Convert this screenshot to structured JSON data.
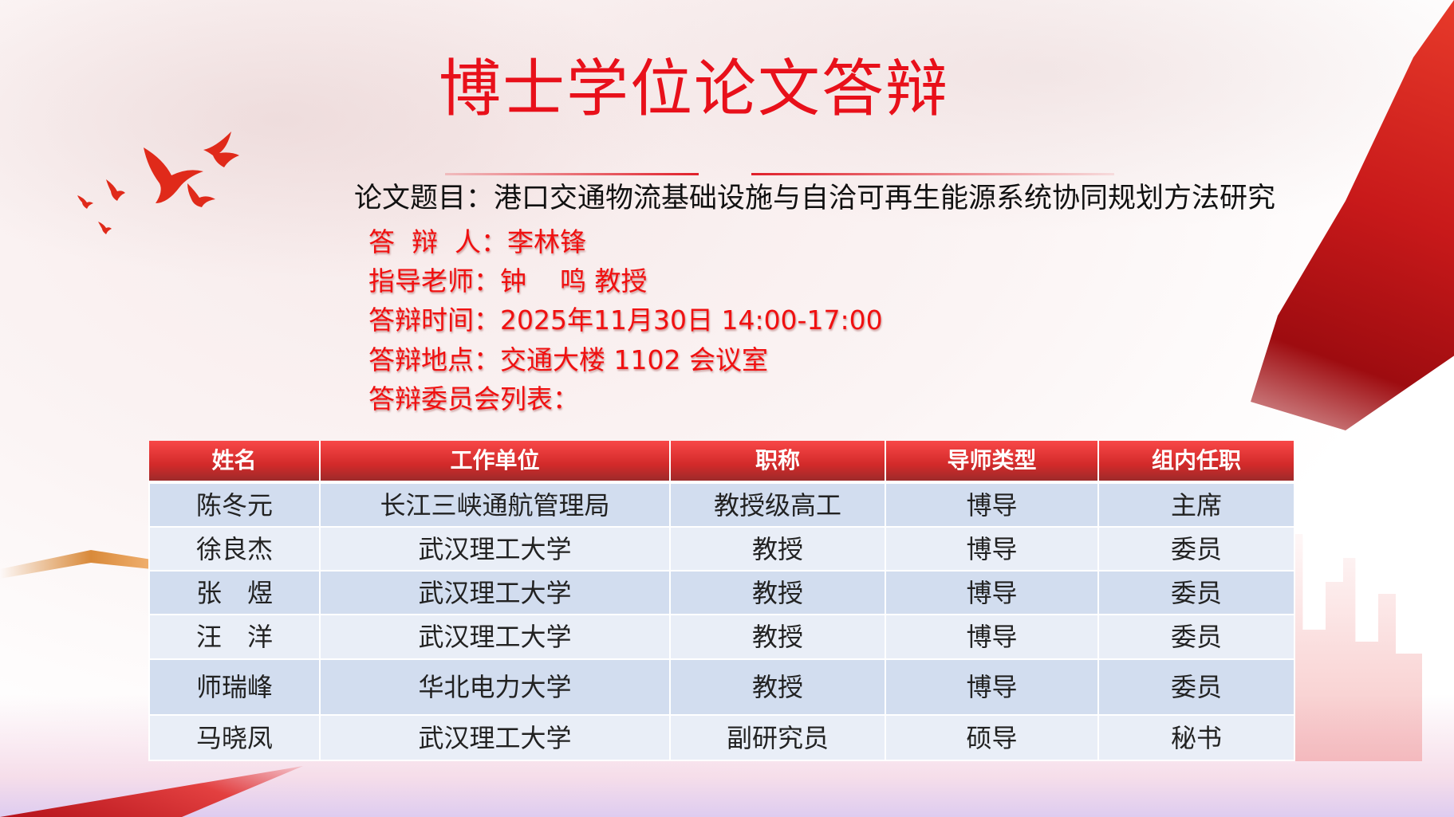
{
  "title": "博士学位论文答辩",
  "thesis": "论文题目：港口交通物流基础设施与自洽可再生能源系统协同规划方法研究",
  "info": [
    "答  辩  人：李林锋",
    "指导老师：钟    鸣 教授",
    "答辩时间：2025年11月30日 14:00-17:00",
    "答辩地点：交通大楼 1102 会议室",
    "答辩委员会列表："
  ],
  "table": {
    "headers": [
      "姓名",
      "工作单位",
      "职称",
      "导师类型",
      "组内任职"
    ],
    "rows": [
      [
        "陈冬元",
        "长江三峡通航管理局",
        "教授级高工",
        "博导",
        "主席"
      ],
      [
        "徐良杰",
        "武汉理工大学",
        "教授",
        "博导",
        "委员"
      ],
      [
        "张　煜",
        "武汉理工大学",
        "教授",
        "博导",
        "委员"
      ],
      [
        "汪　洋",
        "武汉理工大学",
        "教授",
        "博导",
        "委员"
      ],
      [
        "师瑞峰",
        "华北电力大学",
        "教授",
        "博导",
        "委员"
      ],
      [
        "马晓凤",
        "武汉理工大学",
        "副研究员",
        "硕导",
        "秘书"
      ]
    ]
  },
  "colors": {
    "accent": "#e8101a",
    "header": "#d22a2a",
    "row_dark": "#d2ddef",
    "row_light": "#e9eef7"
  }
}
